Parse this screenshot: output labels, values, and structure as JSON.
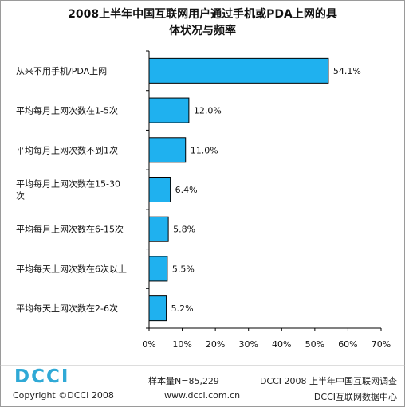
{
  "chart_data": {
    "type": "bar",
    "orientation": "horizontal",
    "title": "2008上半年中国互联网用户通过手机或PDA上网的具体状况与频率",
    "title_lines": [
      "2008上半年中国互联网用户通过手机或PDA上网的具",
      "体状况与频率"
    ],
    "categories": [
      [
        "从来不用手机/PDA上网"
      ],
      [
        "平均每月上网次数在1-5次"
      ],
      [
        "平均每月上网次数不到1次"
      ],
      [
        "平均每月上网次数在15-30",
        "次"
      ],
      [
        "平均每月上网次数在6-15次"
      ],
      [
        "平均每天上网次数在6次以上"
      ],
      [
        "平均每天上网次数在2-6次"
      ]
    ],
    "values": [
      54.1,
      12.0,
      11.0,
      6.4,
      5.8,
      5.5,
      5.2
    ],
    "value_labels": [
      "54.1%",
      "12.0%",
      "11.0%",
      "6.4%",
      "5.8%",
      "5.5%",
      "5.2%"
    ],
    "xlim": [
      0,
      70
    ],
    "xticks": [
      "0%",
      "10%",
      "20%",
      "30%",
      "40%",
      "50%",
      "60%",
      "70%"
    ],
    "grid": false,
    "colors": {
      "bar": "#1fb1ef",
      "bar_edge": "#000000"
    }
  },
  "footer": {
    "logo": "DCCI",
    "copyright": "Copyright ©DCCI 2008",
    "sample": "样本量N=85,229",
    "survey": "DCCI 2008 上半年中国互联网调查",
    "url": "www.dcci.com.cn",
    "center": "DCCI互联网数据中心"
  }
}
